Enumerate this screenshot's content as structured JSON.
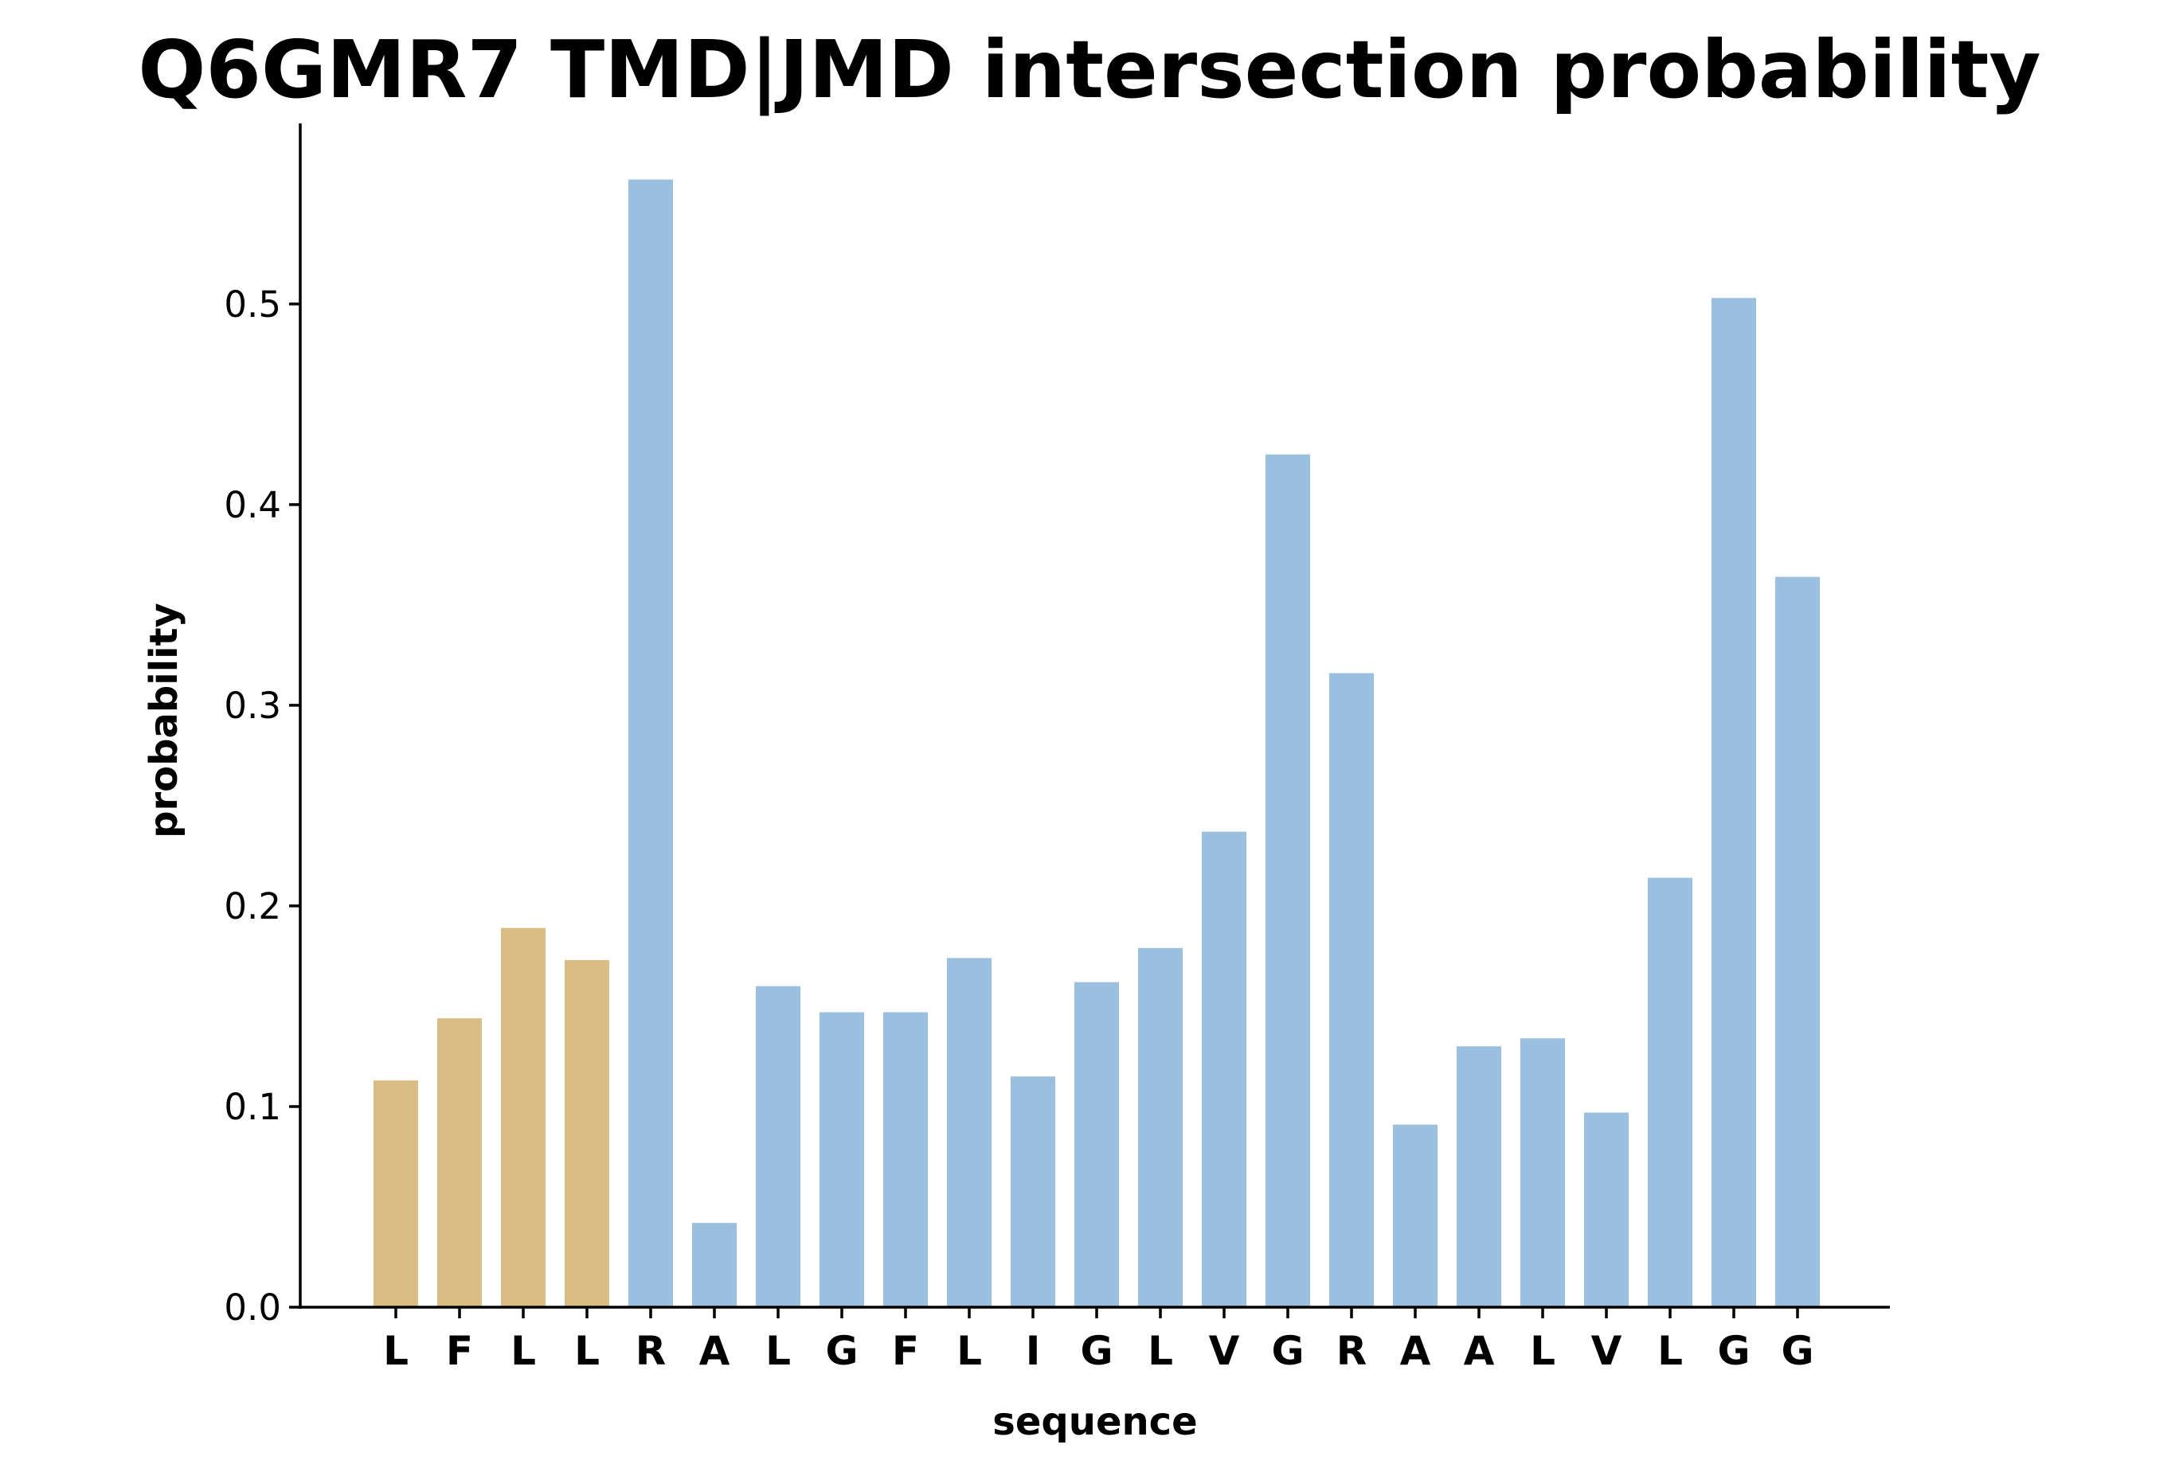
{
  "chart_data": {
    "type": "bar",
    "title": "Q6GMR7 TMD|JMD intersection probability",
    "xlabel": "sequence",
    "ylabel": "probability",
    "ylim": [
      0,
      0.59
    ],
    "yticks": [
      "0.0",
      "0.1",
      "0.2",
      "0.3",
      "0.4",
      "0.5"
    ],
    "grid": false,
    "categories": [
      "L",
      "F",
      "L",
      "L",
      "R",
      "A",
      "L",
      "G",
      "F",
      "L",
      "I",
      "G",
      "L",
      "V",
      "G",
      "R",
      "A",
      "A",
      "L",
      "V",
      "L",
      "G",
      "G"
    ],
    "values": [
      0.113,
      0.144,
      0.189,
      0.173,
      0.562,
      0.042,
      0.16,
      0.147,
      0.147,
      0.174,
      0.115,
      0.162,
      0.179,
      0.237,
      0.425,
      0.316,
      0.091,
      0.13,
      0.134,
      0.097,
      0.214,
      0.503,
      0.364
    ],
    "colors": [
      "#d9bd82",
      "#d9bd82",
      "#d9bd82",
      "#d9bd82",
      "#9bc0df",
      "#9bc0df",
      "#9bc0df",
      "#9bc0df",
      "#9bc0df",
      "#9bc0df",
      "#9bc0df",
      "#9bc0df",
      "#9bc0df",
      "#9bc0df",
      "#9bc0df",
      "#9bc0df",
      "#9bc0df",
      "#9bc0df",
      "#9bc0df",
      "#9bc0df",
      "#9bc0df",
      "#9bc0df",
      "#9bc0df"
    ]
  }
}
